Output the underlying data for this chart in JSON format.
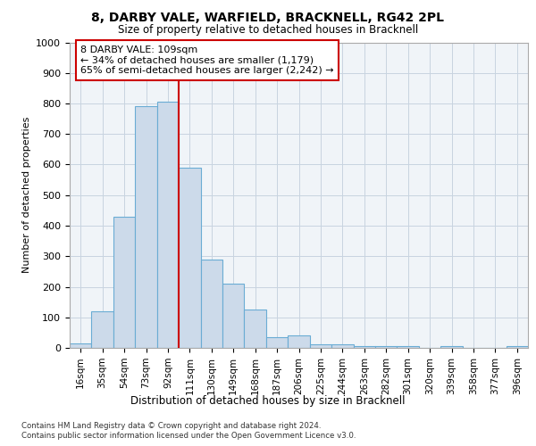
{
  "title": "8, DARBY VALE, WARFIELD, BRACKNELL, RG42 2PL",
  "subtitle": "Size of property relative to detached houses in Bracknell",
  "xlabel": "Distribution of detached houses by size in Bracknell",
  "ylabel": "Number of detached properties",
  "categories": [
    "16sqm",
    "35sqm",
    "54sqm",
    "73sqm",
    "92sqm",
    "111sqm",
    "130sqm",
    "149sqm",
    "168sqm",
    "187sqm",
    "206sqm",
    "225sqm",
    "244sqm",
    "263sqm",
    "282sqm",
    "301sqm",
    "320sqm",
    "339sqm",
    "358sqm",
    "377sqm",
    "396sqm"
  ],
  "values": [
    15,
    120,
    430,
    790,
    805,
    590,
    290,
    210,
    125,
    35,
    40,
    13,
    13,
    5,
    5,
    5,
    0,
    5,
    0,
    0,
    5
  ],
  "bar_color": "#ccdaea",
  "bar_edge_color": "#6aacd4",
  "vline_x": 4.5,
  "vline_color": "#cc0000",
  "annotation_text": "8 DARBY VALE: 109sqm\n← 34% of detached houses are smaller (1,179)\n65% of semi-detached houses are larger (2,242) →",
  "annotation_box_color": "#ffffff",
  "annotation_box_edge": "#cc0000",
  "ylim": [
    0,
    1000
  ],
  "yticks": [
    0,
    100,
    200,
    300,
    400,
    500,
    600,
    700,
    800,
    900,
    1000
  ],
  "footer1": "Contains HM Land Registry data © Crown copyright and database right 2024.",
  "footer2": "Contains public sector information licensed under the Open Government Licence v3.0.",
  "bg_color": "#f0f4f8",
  "grid_color": "#c8d4e0"
}
